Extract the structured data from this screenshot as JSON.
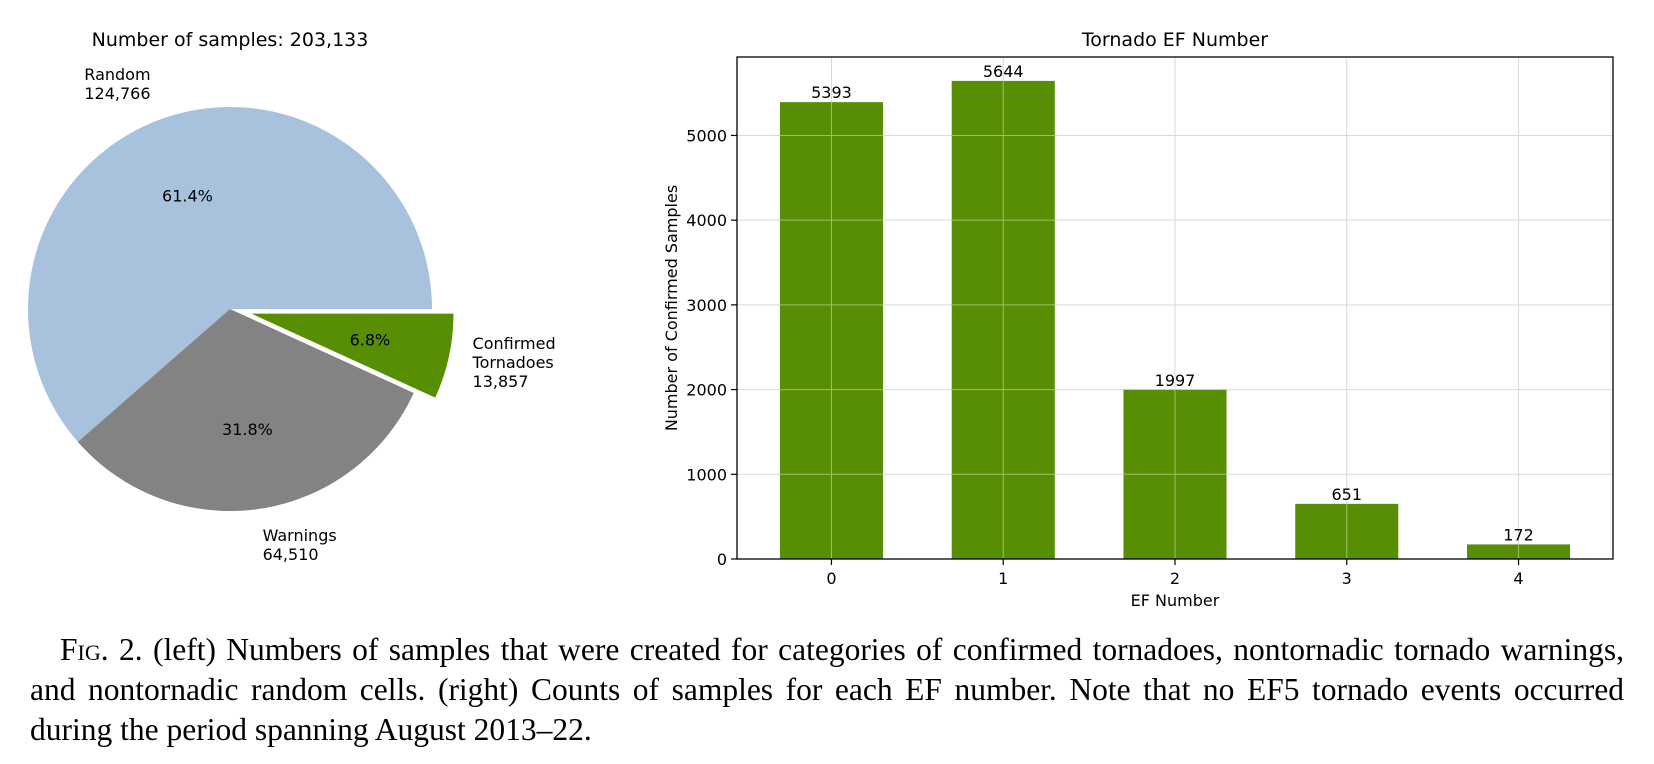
{
  "chart_data": [
    {
      "type": "pie",
      "title": "Number of samples: 203,133",
      "colors": [
        "#a8c2de",
        "#838383",
        "#588e04"
      ],
      "slices": [
        {
          "label": "Random",
          "count": "124,766",
          "value": 124766,
          "pct": "61.4%",
          "color": "#a8c2de",
          "exploded": false
        },
        {
          "label": "Warnings",
          "count": "64,510",
          "value": 64510,
          "pct": "31.8%",
          "color": "#838383",
          "exploded": false
        },
        {
          "label": "Confirmed Tornadoes",
          "label_lines": [
            "Confirmed",
            "Tornadoes"
          ],
          "count": "13,857",
          "value": 13857,
          "pct": "6.8%",
          "color": "#588e04",
          "exploded": true
        }
      ]
    },
    {
      "type": "bar",
      "title": "Tornado EF Number",
      "xlabel": "EF Number",
      "ylabel": "Number of Confirmed Samples",
      "categories": [
        "0",
        "1",
        "2",
        "3",
        "4"
      ],
      "values": [
        5393,
        5644,
        1997,
        651,
        172
      ],
      "bar_labels": [
        "5393",
        "5644",
        "1997",
        "651",
        "172"
      ],
      "yticks": [
        0,
        1000,
        2000,
        3000,
        4000,
        5000
      ],
      "ylim": [
        0,
        5926
      ],
      "grid": true,
      "color": "#588e04"
    }
  ],
  "caption": {
    "prefix": "Fig. 2.",
    "text": "(left) Numbers of samples that were created for categories of confirmed tornadoes, nontornadic tornado warnings, and nontornadic random cells. (right) Counts of samples for each EF number. Note that no EF5 tornado events occurred during the period spanning August 2013–22."
  }
}
